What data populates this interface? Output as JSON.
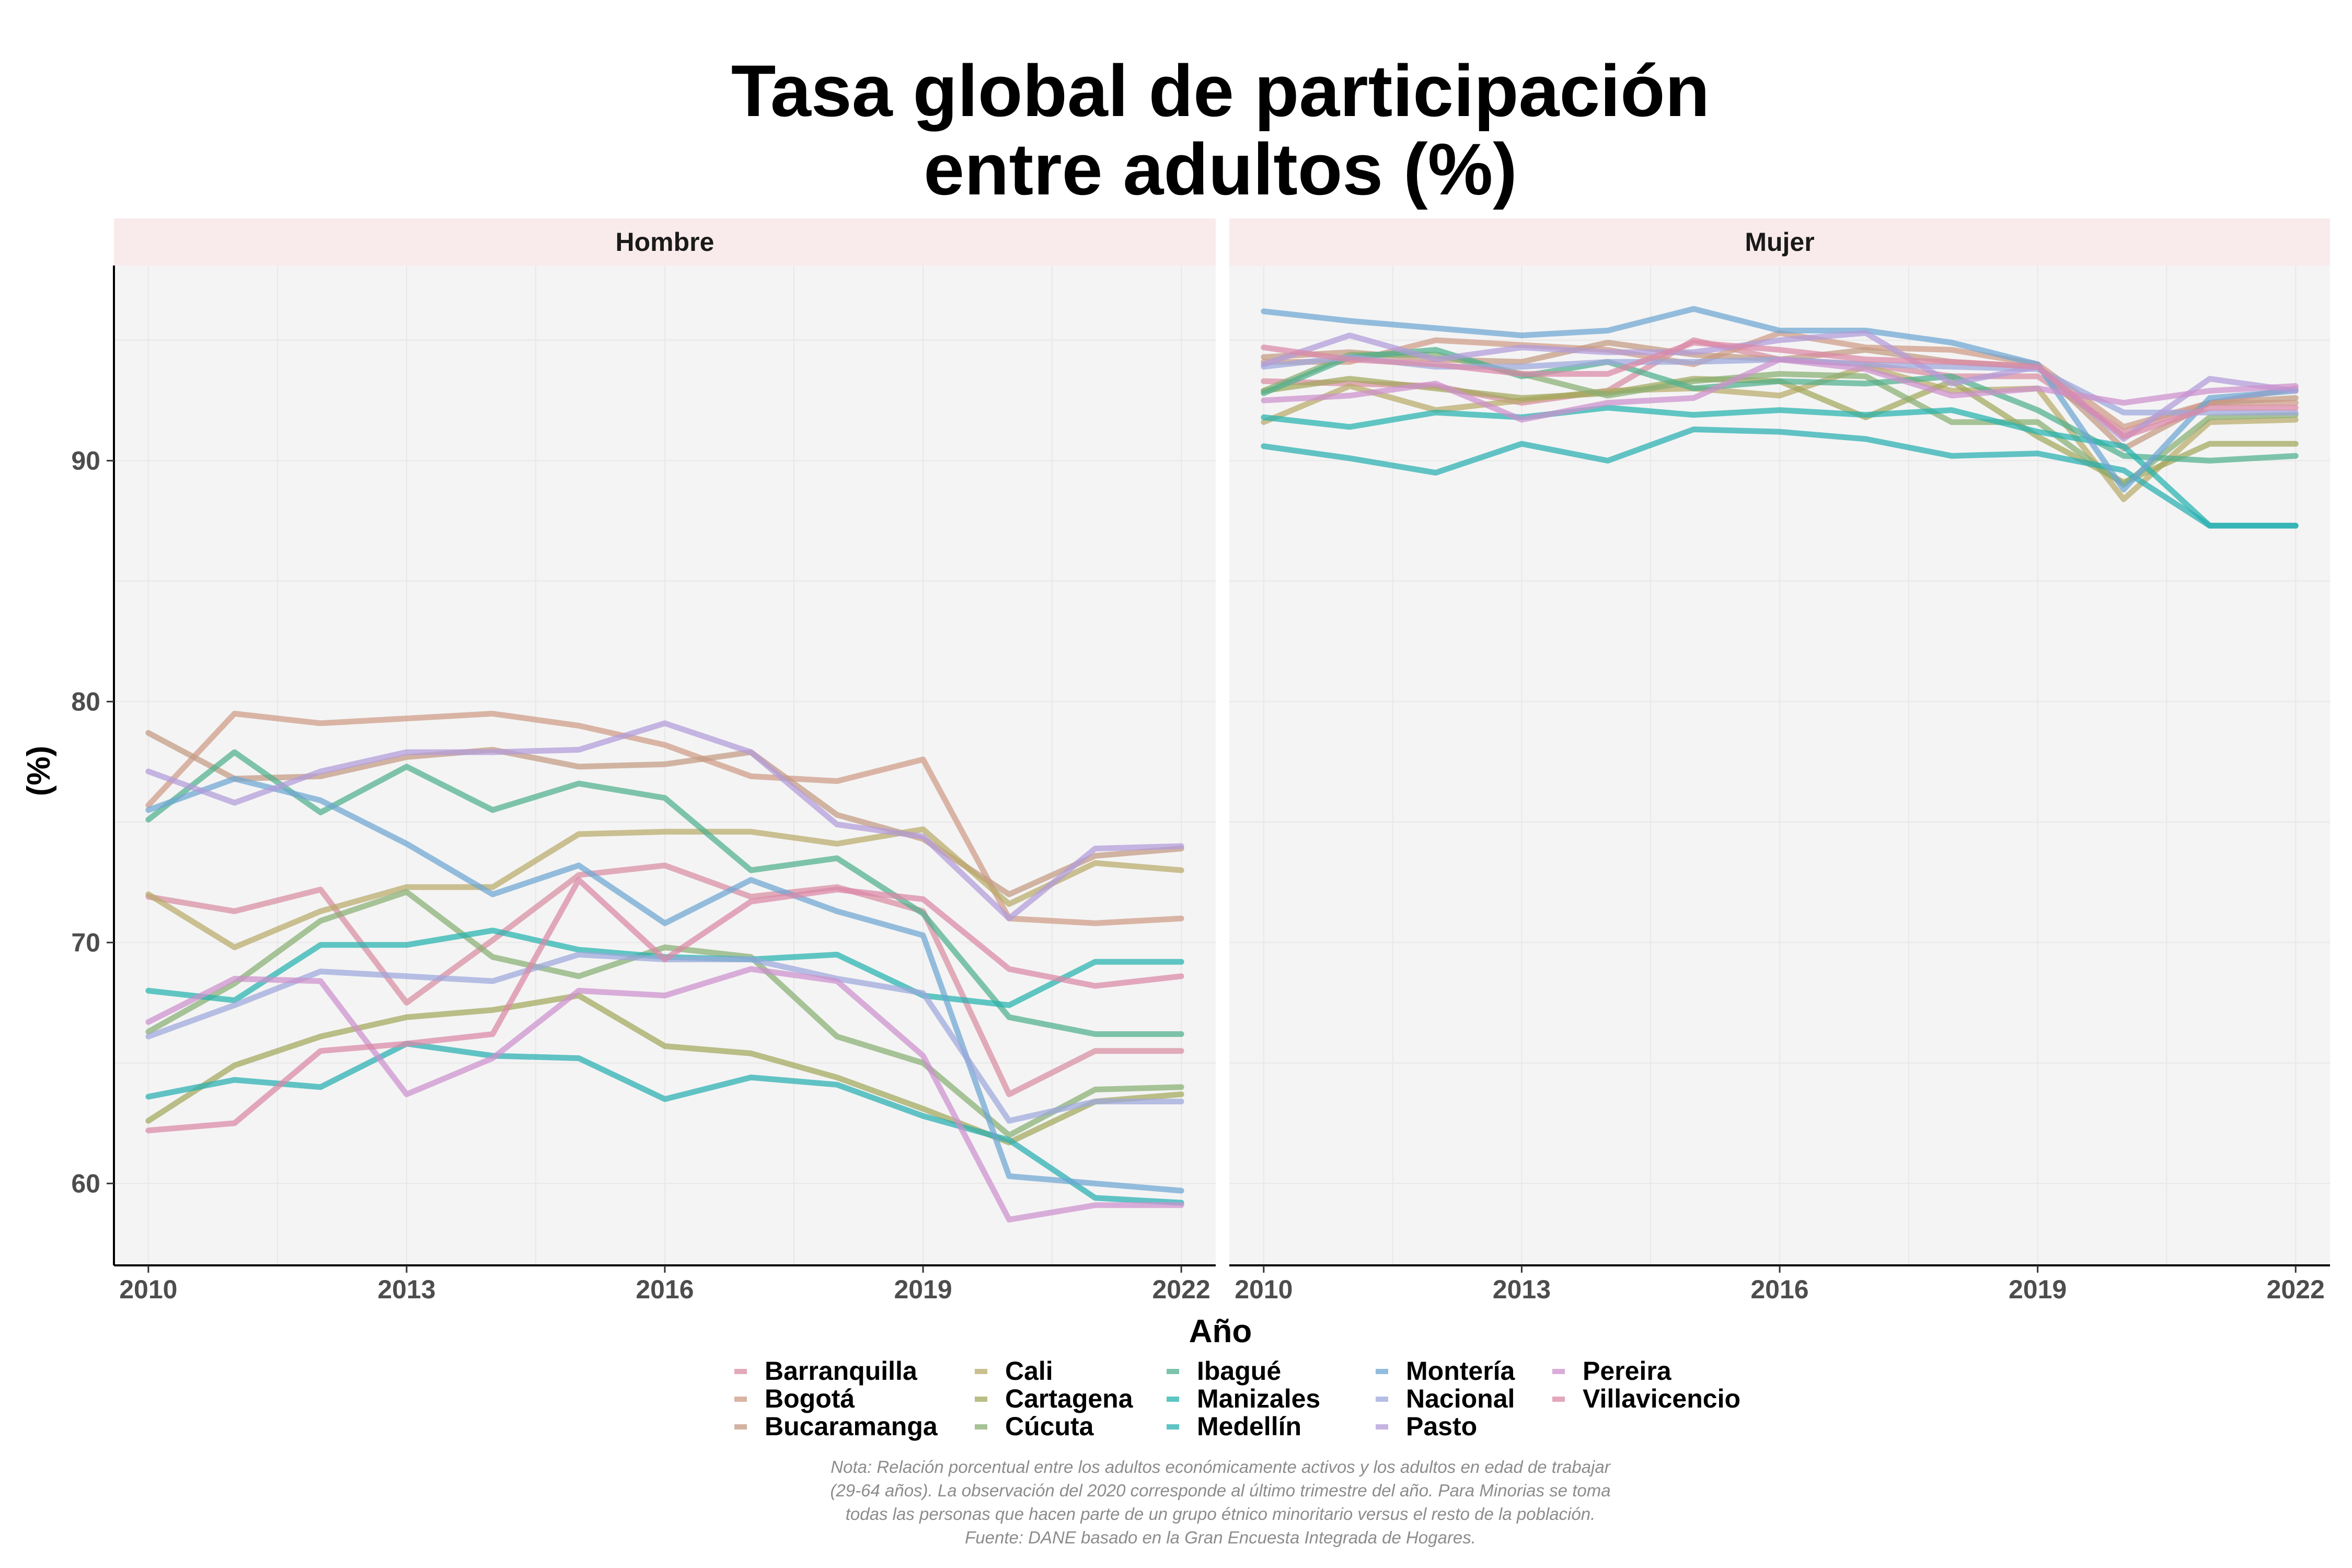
{
  "chart_data": {
    "type": "line",
    "title": [
      "Tasa global de participación",
      "entre adultos (%)"
    ],
    "xlabel": "Año",
    "ylabel": "(%)",
    "xlim": [
      2009.6,
      2022.4
    ],
    "ylim": [
      56.6,
      98.1
    ],
    "x_ticks": [
      2010,
      2013,
      2016,
      2019,
      2022
    ],
    "y_ticks": [
      60,
      70,
      80,
      90
    ],
    "grid": true,
    "legend_position": "bottom",
    "years": [
      2010,
      2011,
      2012,
      2013,
      2014,
      2015,
      2016,
      2017,
      2018,
      2019,
      2020,
      2021,
      2022
    ],
    "panels": [
      {
        "label": "Hombre",
        "series": [
          {
            "name": "Barranquilla",
            "values": [
              71.9,
              71.3,
              72.2,
              67.5,
              70.1,
              72.8,
              73.2,
              71.9,
              72.3,
              71.3,
              63.7,
              65.5,
              65.5
            ]
          },
          {
            "name": "Bogotá",
            "values": [
              75.7,
              79.5,
              79.1,
              79.3,
              79.5,
              79.0,
              78.2,
              76.9,
              76.7,
              77.6,
              71.0,
              70.8,
              71.0
            ]
          },
          {
            "name": "Bucaramanga",
            "values": [
              78.7,
              76.8,
              76.9,
              77.7,
              78.0,
              77.3,
              77.4,
              77.9,
              75.3,
              74.3,
              72.0,
              73.6,
              73.9
            ]
          },
          {
            "name": "Cali",
            "values": [
              72.0,
              69.8,
              71.3,
              72.3,
              72.3,
              74.5,
              74.6,
              74.6,
              74.1,
              74.7,
              71.6,
              73.3,
              73.0
            ]
          },
          {
            "name": "Cartagena",
            "values": [
              62.6,
              64.9,
              66.1,
              66.9,
              67.2,
              67.8,
              65.7,
              65.4,
              64.4,
              63.1,
              61.7,
              63.4,
              63.7
            ]
          },
          {
            "name": "Cúcuta",
            "values": [
              66.3,
              68.3,
              70.9,
              72.1,
              69.4,
              68.6,
              69.8,
              69.4,
              66.1,
              65.0,
              62.0,
              63.9,
              64.0
            ]
          },
          {
            "name": "Ibagué",
            "values": [
              75.1,
              77.9,
              75.4,
              77.3,
              75.5,
              76.6,
              76.0,
              73.0,
              73.5,
              71.2,
              66.9,
              66.2,
              66.2
            ]
          },
          {
            "name": "Manizales",
            "values": [
              68.0,
              67.6,
              69.9,
              69.9,
              70.5,
              69.7,
              69.4,
              69.3,
              69.5,
              67.8,
              67.4,
              69.2,
              69.2
            ]
          },
          {
            "name": "Medellín",
            "values": [
              63.6,
              64.3,
              64.0,
              65.8,
              65.3,
              65.2,
              63.5,
              64.4,
              64.1,
              62.8,
              61.8,
              59.4,
              59.2
            ]
          },
          {
            "name": "Montería",
            "values": [
              75.5,
              76.8,
              75.9,
              74.1,
              72.0,
              73.2,
              70.8,
              72.6,
              71.3,
              70.3,
              60.3,
              60.0,
              59.7
            ]
          },
          {
            "name": "Nacional",
            "values": [
              66.1,
              67.4,
              68.8,
              68.6,
              68.4,
              69.5,
              69.3,
              69.3,
              68.5,
              67.9,
              62.6,
              63.4,
              63.4
            ]
          },
          {
            "name": "Pasto",
            "values": [
              77.1,
              75.8,
              77.1,
              77.9,
              77.9,
              78.0,
              79.1,
              77.9,
              74.9,
              74.4,
              71.0,
              73.9,
              74.0
            ]
          },
          {
            "name": "Pereira",
            "values": [
              66.7,
              68.5,
              68.4,
              63.7,
              65.2,
              68.0,
              67.8,
              68.9,
              68.4,
              65.3,
              58.5,
              59.1,
              59.1
            ]
          },
          {
            "name": "Villavicencio",
            "values": [
              62.2,
              62.5,
              65.5,
              65.8,
              66.2,
              72.6,
              69.3,
              71.7,
              72.2,
              71.8,
              68.9,
              68.2,
              68.6
            ]
          }
        ]
      },
      {
        "label": "Mujer",
        "series": [
          {
            "name": "Barranquilla",
            "values": [
              93.3,
              93.2,
              93.1,
              92.4,
              92.9,
              95.0,
              94.2,
              94.0,
              93.5,
              93.5,
              91.2,
              92.4,
              93.0
            ]
          },
          {
            "name": "Bogotá",
            "values": [
              94.1,
              94.1,
              95.0,
              94.8,
              94.6,
              94.0,
              95.3,
              94.7,
              94.6,
              94.0,
              91.4,
              92.4,
              92.4
            ]
          },
          {
            "name": "Bucaramanga",
            "values": [
              94.3,
              94.5,
              94.2,
              94.1,
              94.9,
              94.4,
              94.2,
              94.6,
              94.1,
              93.9,
              90.5,
              92.4,
              92.6
            ]
          },
          {
            "name": "Cali",
            "values": [
              91.6,
              93.1,
              92.1,
              92.5,
              92.9,
              93.0,
              92.7,
              93.9,
              92.9,
              93.0,
              88.4,
              91.6,
              91.7
            ]
          },
          {
            "name": "Cartagena",
            "values": [
              92.9,
              93.4,
              93.0,
              92.6,
              92.8,
              93.4,
              93.3,
              91.8,
              93.3,
              91.0,
              89.1,
              90.7,
              90.7
            ]
          },
          {
            "name": "Cúcuta",
            "values": [
              92.9,
              94.4,
              94.4,
              93.6,
              92.7,
              93.3,
              93.6,
              93.5,
              91.6,
              91.6,
              89.0,
              91.8,
              91.9
            ]
          },
          {
            "name": "Ibagué",
            "values": [
              92.8,
              94.3,
              94.6,
              93.5,
              94.1,
              93.0,
              93.3,
              93.2,
              93.5,
              92.1,
              90.2,
              90.0,
              90.2
            ]
          },
          {
            "name": "Manizales",
            "values": [
              91.8,
              91.4,
              92.0,
              91.8,
              92.2,
              91.9,
              92.1,
              91.9,
              92.1,
              91.2,
              90.6,
              87.3,
              87.3
            ]
          },
          {
            "name": "Medellín",
            "values": [
              90.6,
              90.1,
              89.5,
              90.7,
              90.0,
              91.3,
              91.2,
              90.9,
              90.2,
              90.3,
              89.6,
              87.3,
              87.3
            ]
          },
          {
            "name": "Montería",
            "values": [
              96.2,
              95.8,
              95.5,
              95.2,
              95.4,
              96.3,
              95.4,
              95.4,
              94.9,
              94.0,
              88.8,
              92.6,
              92.9
            ]
          },
          {
            "name": "Nacional",
            "values": [
              93.9,
              94.3,
              93.9,
              93.9,
              94.1,
              94.1,
              94.2,
              94.0,
              93.9,
              93.8,
              92.0,
              92.0,
              92.0
            ]
          },
          {
            "name": "Pasto",
            "values": [
              94.0,
              95.2,
              94.2,
              94.7,
              94.5,
              94.5,
              95.0,
              95.3,
              93.2,
              93.9,
              90.9,
              93.4,
              92.9
            ]
          },
          {
            "name": "Pereira",
            "values": [
              92.5,
              92.7,
              93.2,
              91.7,
              92.4,
              92.6,
              94.2,
              93.8,
              92.7,
              93.0,
              92.4,
              92.9,
              93.1
            ]
          },
          {
            "name": "Villavicencio",
            "values": [
              94.7,
              94.2,
              94.0,
              93.6,
              93.6,
              94.9,
              94.6,
              94.2,
              94.1,
              93.9,
              91.0,
              92.2,
              92.2
            ]
          }
        ]
      }
    ],
    "series_colors": {
      "Barranquilla": "#D88DA2",
      "Bogotá": "#CE9B86",
      "Bucaramanga": "#C49A82",
      "Cali": "#B8AA6A",
      "Cartagena": "#A2A85B",
      "Cúcuta": "#88AE73",
      "Ibagué": "#4FB08E",
      "Manizales": "#25B3AE",
      "Medellín": "#28AFB2",
      "Montería": "#6EA6D2",
      "Nacional": "#9DA8DD",
      "Pasto": "#B29BDA",
      "Pereira": "#CD90CD",
      "Villavicencio": "#DB88A6"
    },
    "legend_columns": [
      [
        "Barranquilla",
        "Bogotá",
        "Bucaramanga"
      ],
      [
        "Cali",
        "Cartagena",
        "Cúcuta"
      ],
      [
        "Ibagué",
        "Manizales",
        "Medellín"
      ],
      [
        "Montería",
        "Nacional",
        "Pasto"
      ],
      [
        "Pereira",
        "Villavicencio"
      ]
    ],
    "note_lines": [
      "Nota: Relación porcentual entre los adultos económicamente activos y los adultos en edad de trabajar",
      "(29-64 años). La observación del 2020 corresponde al último trimestre del año. Para Minorias se toma",
      "todas las personas que hacen parte de un grupo étnico minoritario versus el resto de la población.",
      "Fuente: DANE basado en la Gran Encuesta Integrada de Hogares."
    ]
  },
  "colors": {
    "panel_background": "#F4F4F4",
    "strip_background": "#F9EBEB",
    "grid": "#E8E8E8",
    "axis": "#000000"
  }
}
